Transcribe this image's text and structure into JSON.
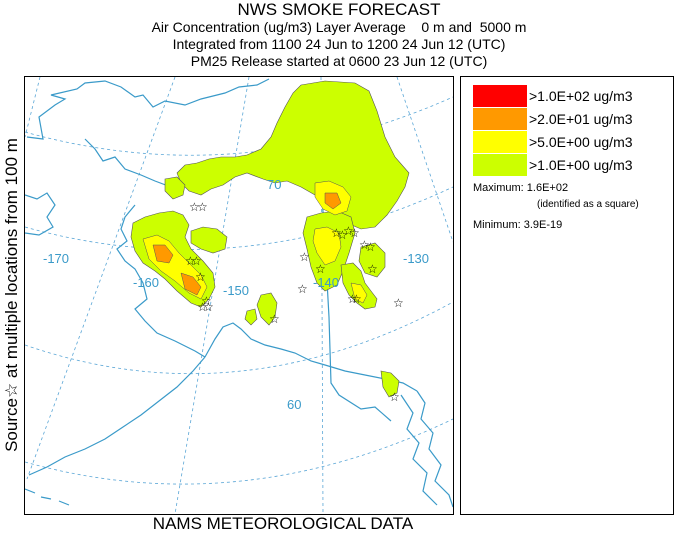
{
  "header": {
    "title": "NWS SMOKE FORECAST",
    "line2": "Air Concentration (ug/m3) Layer Average    0 m and  5000 m",
    "line3": "Integrated from 1100 24 Jun to 1200 24 Jun 12 (UTC)",
    "line4": "PM25 Release started at 0600 23 Jun 12 (UTC)"
  },
  "side_label": "Source☆ at multiple locations   from   100 m",
  "bottom_label": "NAMS METEOROLOGICAL DATA",
  "map": {
    "longitude_labels": [
      "-170",
      "-160",
      "-150",
      "-140",
      "-130"
    ],
    "latitude_labels": [
      "70",
      "60"
    ],
    "colors": {
      "coast": "#3a9ac9",
      "graticule": "#5aa6d6",
      "level_1": "#ccff00",
      "level_2": "#ffff00",
      "level_3": "#ff9900",
      "level_4": "#ff0000"
    }
  },
  "legend": {
    "items": [
      {
        "label": ">1.0E+02 ug/m3",
        "color": "#ff0000"
      },
      {
        "label": ">2.0E+01 ug/m3",
        "color": "#ff9900"
      },
      {
        "label": ">5.0E+00 ug/m3",
        "color": "#ffff00"
      },
      {
        "label": ">1.0E+00 ug/m3",
        "color": "#ccff00"
      }
    ],
    "maximum": "Maximum: 1.6E+02",
    "maximum_note": "(identified as a square)",
    "minimum": "Minimum: 3.9E-19"
  }
}
